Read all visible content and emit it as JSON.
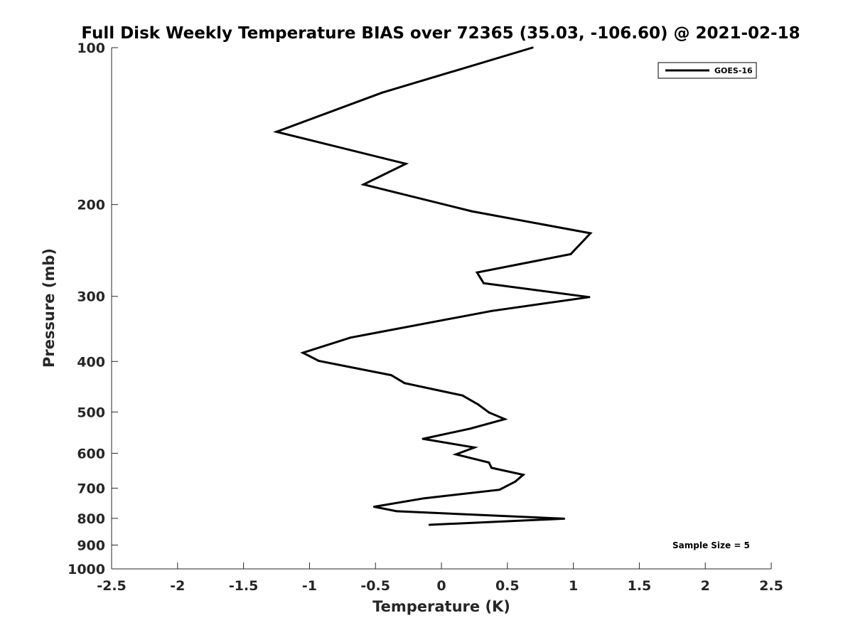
{
  "chart_data": {
    "type": "line",
    "title": "Full Disk Weekly Temperature BIAS over 72365 (35.03, -106.60) @ 2021-02-18",
    "xlabel": "Temperature (K)",
    "ylabel": "Pressure (mb)",
    "xlim": [
      -2.5,
      2.5
    ],
    "ylim": [
      100,
      1000
    ],
    "y_scale": "log",
    "y_reversed": true,
    "x_ticks": [
      -2.5,
      -2,
      -1.5,
      -1,
      -0.5,
      0,
      0.5,
      1,
      1.5,
      2,
      2.5
    ],
    "x_tick_labels": [
      "-2.5",
      "-2",
      "-1.5",
      "-1",
      "-0.5",
      "0",
      "0.5",
      "1",
      "1.5",
      "2",
      "2.5"
    ],
    "y_ticks": [
      100,
      200,
      300,
      400,
      500,
      600,
      700,
      800,
      900,
      1000
    ],
    "y_tick_labels": [
      "100",
      "200",
      "300",
      "400",
      "500",
      "600",
      "700",
      "800",
      "900",
      "1000"
    ],
    "grid": false,
    "legend_position": "top-right",
    "series": [
      {
        "name": "GOES-16",
        "color": "#000000",
        "x": [
          0.69,
          -0.45,
          -1.25,
          -0.27,
          -0.59,
          0.23,
          1.13,
          0.98,
          0.27,
          0.32,
          1.12,
          0.38,
          -0.69,
          -1.05,
          -0.93,
          -0.38,
          -0.28,
          0.16,
          0.28,
          0.36,
          0.48,
          0.22,
          -0.14,
          0.25,
          0.11,
          0.36,
          0.38,
          0.62,
          0.56,
          0.44,
          -0.13,
          -0.51,
          -0.34,
          0.93,
          -0.09
        ],
        "y": [
          100,
          122,
          145,
          167,
          183,
          206,
          227,
          249,
          270,
          283,
          301,
          320,
          360,
          385,
          399,
          425,
          440,
          465,
          484,
          501,
          516,
          538,
          563,
          585,
          603,
          625,
          640,
          660,
          680,
          705,
          732,
          760,
          775,
          801,
          823
        ]
      }
    ],
    "annotations": [
      "Sample Size = 5"
    ]
  }
}
